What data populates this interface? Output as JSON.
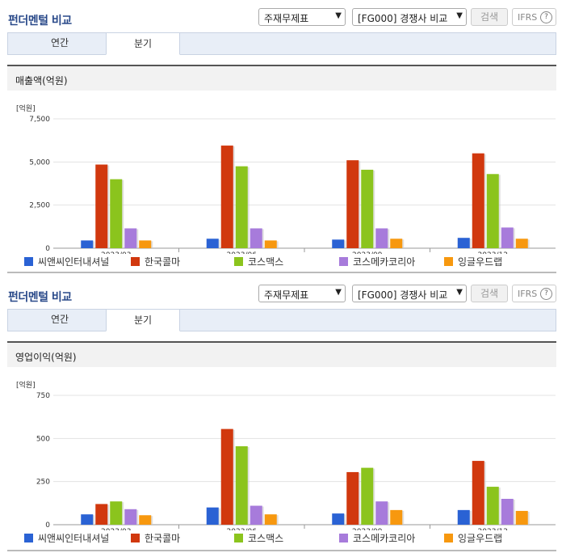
{
  "panels": [
    {
      "title": "펀더멘털 비교",
      "select1": "주재무제표",
      "select2": "[FG000] 경쟁사 비교",
      "search_label": "검색",
      "ifrs_label": "IFRS",
      "tabs": [
        {
          "label": "연간"
        },
        {
          "label": "분기"
        }
      ],
      "section_title": "매출액(억원)"
    },
    {
      "title": "펀더멘털 비교",
      "select1": "주재무제표",
      "select2": "[FG000] 경쟁사 비교",
      "search_label": "검색",
      "ifrs_label": "IFRS",
      "tabs": [
        {
          "label": "연간"
        },
        {
          "label": "분기"
        }
      ],
      "section_title": "영업이익(억원)"
    }
  ],
  "chart_data": [
    {
      "type": "bar",
      "title": "매출액(억원)",
      "unit_label": "[억원]",
      "categories": [
        "2023/03",
        "2023/06",
        "2023/09",
        "2023/12"
      ],
      "ylim": [
        0,
        7500
      ],
      "yticks": [
        "0",
        "2,500",
        "5,000",
        "7,500"
      ],
      "ytick_values": [
        0,
        2500,
        5000,
        7500
      ],
      "legend_position": "bottom",
      "series": [
        {
          "name": "씨앤씨인터내셔널",
          "color": "#2a62d4",
          "values": [
            450,
            550,
            500,
            600
          ]
        },
        {
          "name": "한국콜마",
          "color": "#d1380e",
          "values": [
            4850,
            5950,
            5100,
            5500
          ]
        },
        {
          "name": "코스맥스",
          "color": "#8bc41d",
          "values": [
            4000,
            4750,
            4550,
            4300
          ]
        },
        {
          "name": "코스메카코리아",
          "color": "#a77bdb",
          "values": [
            1150,
            1150,
            1150,
            1200
          ]
        },
        {
          "name": "잉글우드랩",
          "color": "#f7980f",
          "values": [
            450,
            450,
            550,
            550
          ]
        }
      ]
    },
    {
      "type": "bar",
      "title": "영업이익(억원)",
      "unit_label": "[억원]",
      "categories": [
        "2023/03",
        "2023/06",
        "2023/09",
        "2023/12"
      ],
      "ylim": [
        0,
        750
      ],
      "yticks": [
        "0",
        "250",
        "500",
        "750"
      ],
      "ytick_values": [
        0,
        250,
        500,
        750
      ],
      "legend_position": "bottom",
      "series": [
        {
          "name": "씨앤씨인터내셔널",
          "color": "#2a62d4",
          "values": [
            60,
            100,
            65,
            85
          ]
        },
        {
          "name": "한국콜마",
          "color": "#d1380e",
          "values": [
            120,
            555,
            305,
            370
          ]
        },
        {
          "name": "코스맥스",
          "color": "#8bc41d",
          "values": [
            135,
            455,
            330,
            220
          ]
        },
        {
          "name": "코스메카코리아",
          "color": "#a77bdb",
          "values": [
            90,
            110,
            135,
            150
          ]
        },
        {
          "name": "잉글우드랩",
          "color": "#f7980f",
          "values": [
            55,
            60,
            85,
            80
          ]
        }
      ]
    }
  ]
}
